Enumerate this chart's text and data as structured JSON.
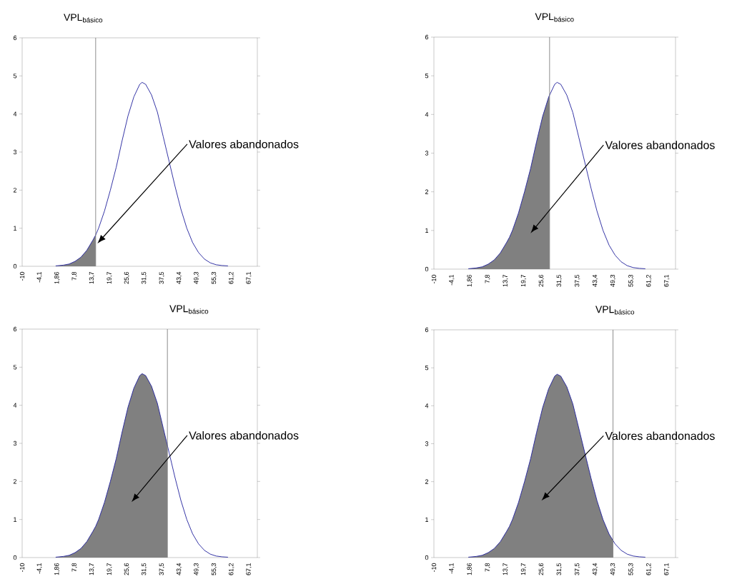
{
  "chart_data": [
    {
      "type": "line",
      "title": "VPL$_{básico}$",
      "x": [
        1.4,
        4,
        6,
        8,
        10,
        12,
        14,
        15,
        16,
        18,
        20,
        22,
        24,
        26,
        28,
        30,
        30.8,
        32,
        34,
        36,
        38,
        40,
        42,
        44,
        46,
        48,
        50,
        52,
        54,
        56,
        58,
        60
      ],
      "series": [
        {
          "type": "area",
          "color": "#808080",
          "x": [
            1.4,
            4,
            6,
            8,
            10,
            12,
            14,
            15
          ],
          "values": [
            0.01,
            0.03,
            0.06,
            0.13,
            0.24,
            0.42,
            0.68,
            0.82
          ]
        },
        {
          "color": "#1f1f9c",
          "values": [
            0.01,
            0.03,
            0.06,
            0.13,
            0.24,
            0.42,
            0.68,
            0.82,
            1.0,
            1.45,
            2.0,
            2.6,
            3.3,
            3.95,
            4.45,
            4.78,
            4.83,
            4.78,
            4.5,
            4.05,
            3.4,
            2.75,
            2.1,
            1.5,
            1.0,
            0.62,
            0.36,
            0.19,
            0.09,
            0.04,
            0.02,
            0.01
          ]
        }
      ],
      "xlim": [
        -10,
        70
      ],
      "ylim": [
        0,
        6
      ],
      "xticks": [
        -10,
        {
          "value": -4.1,
          "label": "-4,1"
        },
        {
          "value": 1.86,
          "label": "1,86"
        },
        {
          "value": 7.8,
          "label": "7,8"
        },
        {
          "value": 13.7,
          "label": "13,7"
        },
        {
          "value": 19.7,
          "label": "19,7"
        },
        {
          "value": 25.6,
          "label": "25,6"
        },
        {
          "value": 31.5,
          "label": "31,5"
        },
        {
          "value": 37.5,
          "label": "37,5"
        },
        {
          "value": 43.4,
          "label": "43,4"
        },
        {
          "value": 49.3,
          "label": "49,3"
        },
        {
          "value": 55.3,
          "label": "55,3"
        },
        {
          "value": 61.2,
          "label": "61,2"
        },
        {
          "value": 67.1,
          "label": "67,1"
        }
      ],
      "yticks": [
        0,
        1,
        2,
        3,
        4,
        5,
        6
      ],
      "ref_lines": [
        {
          "axis": "x",
          "value": 15,
          "color": "#808080"
        }
      ],
      "annotations": [
        "Valores abandonados"
      ]
    },
    {
      "type": "line",
      "title": "VPL$_{básico}$",
      "x": [
        1.4,
        4,
        6,
        8,
        10,
        12,
        14,
        15,
        16,
        18,
        20,
        22,
        24,
        26,
        28,
        30,
        30.8,
        32,
        34,
        36,
        38,
        40,
        42,
        44,
        46,
        48,
        50,
        52,
        54,
        56,
        58,
        60
      ],
      "series": [
        {
          "type": "area",
          "color": "#808080",
          "x": [
            1.4,
            4,
            6,
            8,
            10,
            12,
            14,
            15,
            16,
            18,
            20,
            22,
            24,
            26,
            28,
            28.3
          ],
          "values": [
            0.01,
            0.03,
            0.06,
            0.13,
            0.24,
            0.42,
            0.68,
            0.82,
            1.0,
            1.45,
            2.0,
            2.6,
            3.3,
            3.95,
            4.45,
            4.5
          ]
        },
        {
          "color": "#1f1f9c",
          "values": [
            0.01,
            0.03,
            0.06,
            0.13,
            0.24,
            0.42,
            0.68,
            0.82,
            1.0,
            1.45,
            2.0,
            2.6,
            3.3,
            3.95,
            4.45,
            4.78,
            4.83,
            4.78,
            4.5,
            4.05,
            3.4,
            2.75,
            2.1,
            1.5,
            1.0,
            0.62,
            0.36,
            0.19,
            0.09,
            0.04,
            0.02,
            0.01
          ]
        }
      ],
      "xlim": [
        -10,
        70
      ],
      "ylim": [
        0,
        6
      ],
      "xticks": [
        -10,
        {
          "value": -4.1,
          "label": "-4,1"
        },
        {
          "value": 1.86,
          "label": "1,86"
        },
        {
          "value": 7.8,
          "label": "7,8"
        },
        {
          "value": 13.7,
          "label": "13,7"
        },
        {
          "value": 19.7,
          "label": "19,7"
        },
        {
          "value": 25.6,
          "label": "25,6"
        },
        {
          "value": 31.5,
          "label": "31,5"
        },
        {
          "value": 37.5,
          "label": "37,5"
        },
        {
          "value": 43.4,
          "label": "43,4"
        },
        {
          "value": 49.3,
          "label": "49,3"
        },
        {
          "value": 55.3,
          "label": "55,3"
        },
        {
          "value": 61.2,
          "label": "61,2"
        },
        {
          "value": 67.1,
          "label": "67,1"
        }
      ],
      "yticks": [
        0,
        1,
        2,
        3,
        4,
        5,
        6
      ],
      "ref_lines": [
        {
          "axis": "x",
          "value": 28.3,
          "color": "#808080"
        }
      ],
      "annotations": [
        "Valores abandonados"
      ]
    },
    {
      "type": "line",
      "title": "VPL$_{básico}$",
      "x": [
        1.4,
        4,
        6,
        8,
        10,
        12,
        14,
        15,
        16,
        18,
        20,
        22,
        24,
        26,
        28,
        30,
        30.8,
        32,
        34,
        36,
        38,
        40,
        42,
        44,
        46,
        48,
        50,
        52,
        54,
        56,
        58,
        60
      ],
      "series": [
        {
          "type": "area",
          "color": "#808080",
          "x": [
            1.4,
            4,
            6,
            8,
            10,
            12,
            14,
            15,
            16,
            18,
            20,
            22,
            24,
            26,
            28,
            30,
            30.8,
            32,
            34,
            36,
            38,
            39.4
          ],
          "values": [
            0.01,
            0.03,
            0.06,
            0.13,
            0.24,
            0.42,
            0.68,
            0.82,
            1.0,
            1.45,
            2.0,
            2.6,
            3.3,
            3.95,
            4.45,
            4.78,
            4.83,
            4.78,
            4.5,
            4.05,
            3.4,
            2.95
          ]
        },
        {
          "color": "#1f1f9c",
          "values": [
            0.01,
            0.03,
            0.06,
            0.13,
            0.24,
            0.42,
            0.68,
            0.82,
            1.0,
            1.45,
            2.0,
            2.6,
            3.3,
            3.95,
            4.45,
            4.78,
            4.83,
            4.78,
            4.5,
            4.05,
            3.4,
            2.75,
            2.1,
            1.5,
            1.0,
            0.62,
            0.36,
            0.19,
            0.09,
            0.04,
            0.02,
            0.01
          ]
        }
      ],
      "xlim": [
        -10,
        70
      ],
      "ylim": [
        0,
        6
      ],
      "xticks": [
        -10,
        {
          "value": -4.1,
          "label": "-4,1"
        },
        {
          "value": 1.86,
          "label": "1,86"
        },
        {
          "value": 7.8,
          "label": "7,8"
        },
        {
          "value": 13.7,
          "label": "13,7"
        },
        {
          "value": 19.7,
          "label": "19,7"
        },
        {
          "value": 25.6,
          "label": "25,6"
        },
        {
          "value": 31.5,
          "label": "31,5"
        },
        {
          "value": 37.5,
          "label": "37,5"
        },
        {
          "value": 43.4,
          "label": "43,4"
        },
        {
          "value": 49.3,
          "label": "49,3"
        },
        {
          "value": 55.3,
          "label": "55,3"
        },
        {
          "value": 61.2,
          "label": "61,2"
        },
        {
          "value": 67.1,
          "label": "67,1"
        }
      ],
      "yticks": [
        0,
        1,
        2,
        3,
        4,
        5,
        6
      ],
      "ref_lines": [
        {
          "axis": "x",
          "value": 39.4,
          "color": "#808080"
        }
      ],
      "annotations": [
        "Valores abandonados"
      ]
    },
    {
      "type": "line",
      "title": "VPL$_{básico}$",
      "x": [
        1.4,
        4,
        6,
        8,
        10,
        12,
        14,
        15,
        16,
        18,
        20,
        22,
        24,
        26,
        28,
        30,
        30.8,
        32,
        34,
        36,
        38,
        40,
        42,
        44,
        46,
        48,
        50,
        52,
        54,
        56,
        58,
        60
      ],
      "series": [
        {
          "type": "area",
          "color": "#808080",
          "x": [
            1.4,
            4,
            6,
            8,
            10,
            12,
            14,
            15,
            16,
            18,
            20,
            22,
            24,
            26,
            28,
            30,
            30.8,
            32,
            34,
            36,
            38,
            40,
            42,
            44,
            46,
            48,
            49.3
          ],
          "values": [
            0.01,
            0.03,
            0.06,
            0.13,
            0.24,
            0.42,
            0.68,
            0.82,
            1.0,
            1.45,
            2.0,
            2.6,
            3.3,
            3.95,
            4.45,
            4.78,
            4.83,
            4.78,
            4.5,
            4.05,
            3.4,
            2.75,
            2.1,
            1.5,
            1.0,
            0.62,
            0.45
          ]
        },
        {
          "color": "#1f1f9c",
          "values": [
            0.01,
            0.03,
            0.06,
            0.13,
            0.24,
            0.42,
            0.68,
            0.82,
            1.0,
            1.45,
            2.0,
            2.6,
            3.3,
            3.95,
            4.45,
            4.78,
            4.83,
            4.78,
            4.5,
            4.05,
            3.4,
            2.75,
            2.1,
            1.5,
            1.0,
            0.62,
            0.36,
            0.19,
            0.09,
            0.04,
            0.02,
            0.01
          ]
        }
      ],
      "xlim": [
        -10,
        70
      ],
      "ylim": [
        0,
        6
      ],
      "xticks": [
        -10,
        {
          "value": -4.1,
          "label": "-4,1"
        },
        {
          "value": 1.86,
          "label": "1,86"
        },
        {
          "value": 7.8,
          "label": "7,8"
        },
        {
          "value": 13.7,
          "label": "13,7"
        },
        {
          "value": 19.7,
          "label": "19,7"
        },
        {
          "value": 25.6,
          "label": "25,6"
        },
        {
          "value": 31.5,
          "label": "31,5"
        },
        {
          "value": 37.5,
          "label": "37,5"
        },
        {
          "value": 43.4,
          "label": "43,4"
        },
        {
          "value": 49.3,
          "label": "49,3"
        },
        {
          "value": 55.3,
          "label": "55,3"
        },
        {
          "value": 61.2,
          "label": "61,2"
        },
        {
          "value": 67.1,
          "label": "67,1"
        }
      ],
      "yticks": [
        0,
        1,
        2,
        3,
        4,
        5,
        6
      ],
      "ref_lines": [
        {
          "axis": "x",
          "value": 49.3,
          "color": "#808080"
        }
      ],
      "annotations": [
        "Valores abandonados"
      ]
    }
  ]
}
